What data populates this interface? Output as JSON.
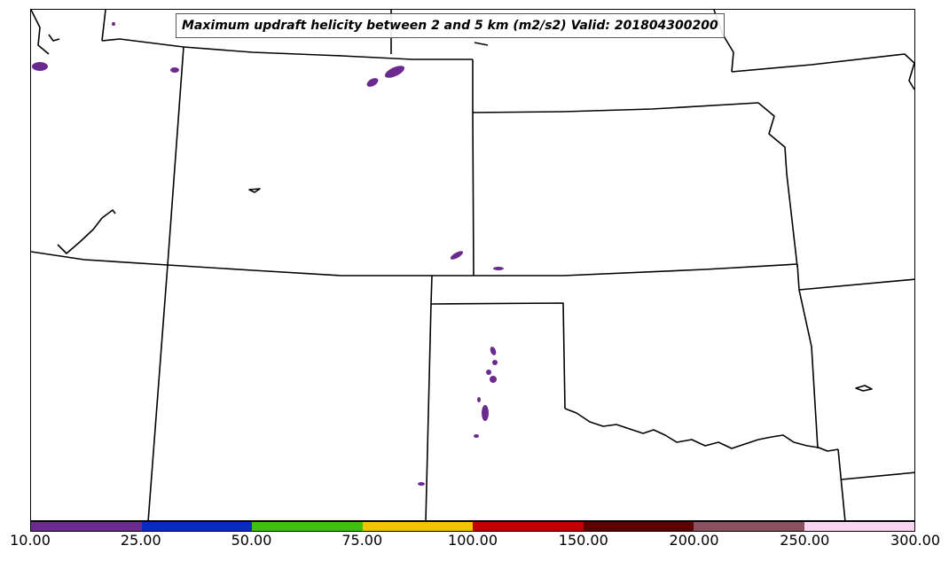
{
  "title": "Maximum updraft helicity between 2 and 5 km (m2/s2) Valid: 201804300200",
  "colorbar": {
    "ticks": [
      "10.00",
      "25.00",
      "50.00",
      "75.00",
      "100.00",
      "150.00",
      "200.00",
      "250.00",
      "300.00"
    ],
    "colors": [
      "#6a2a8e",
      "#0a2bc0",
      "#3cc20f",
      "#f5c400",
      "#c20000",
      "#5e0000",
      "#8a5060",
      "#f8d6f2"
    ]
  },
  "map": {
    "land_color": "#ffffff",
    "border_color": "#000000",
    "storm_cells_color": "#6a2a8e"
  }
}
